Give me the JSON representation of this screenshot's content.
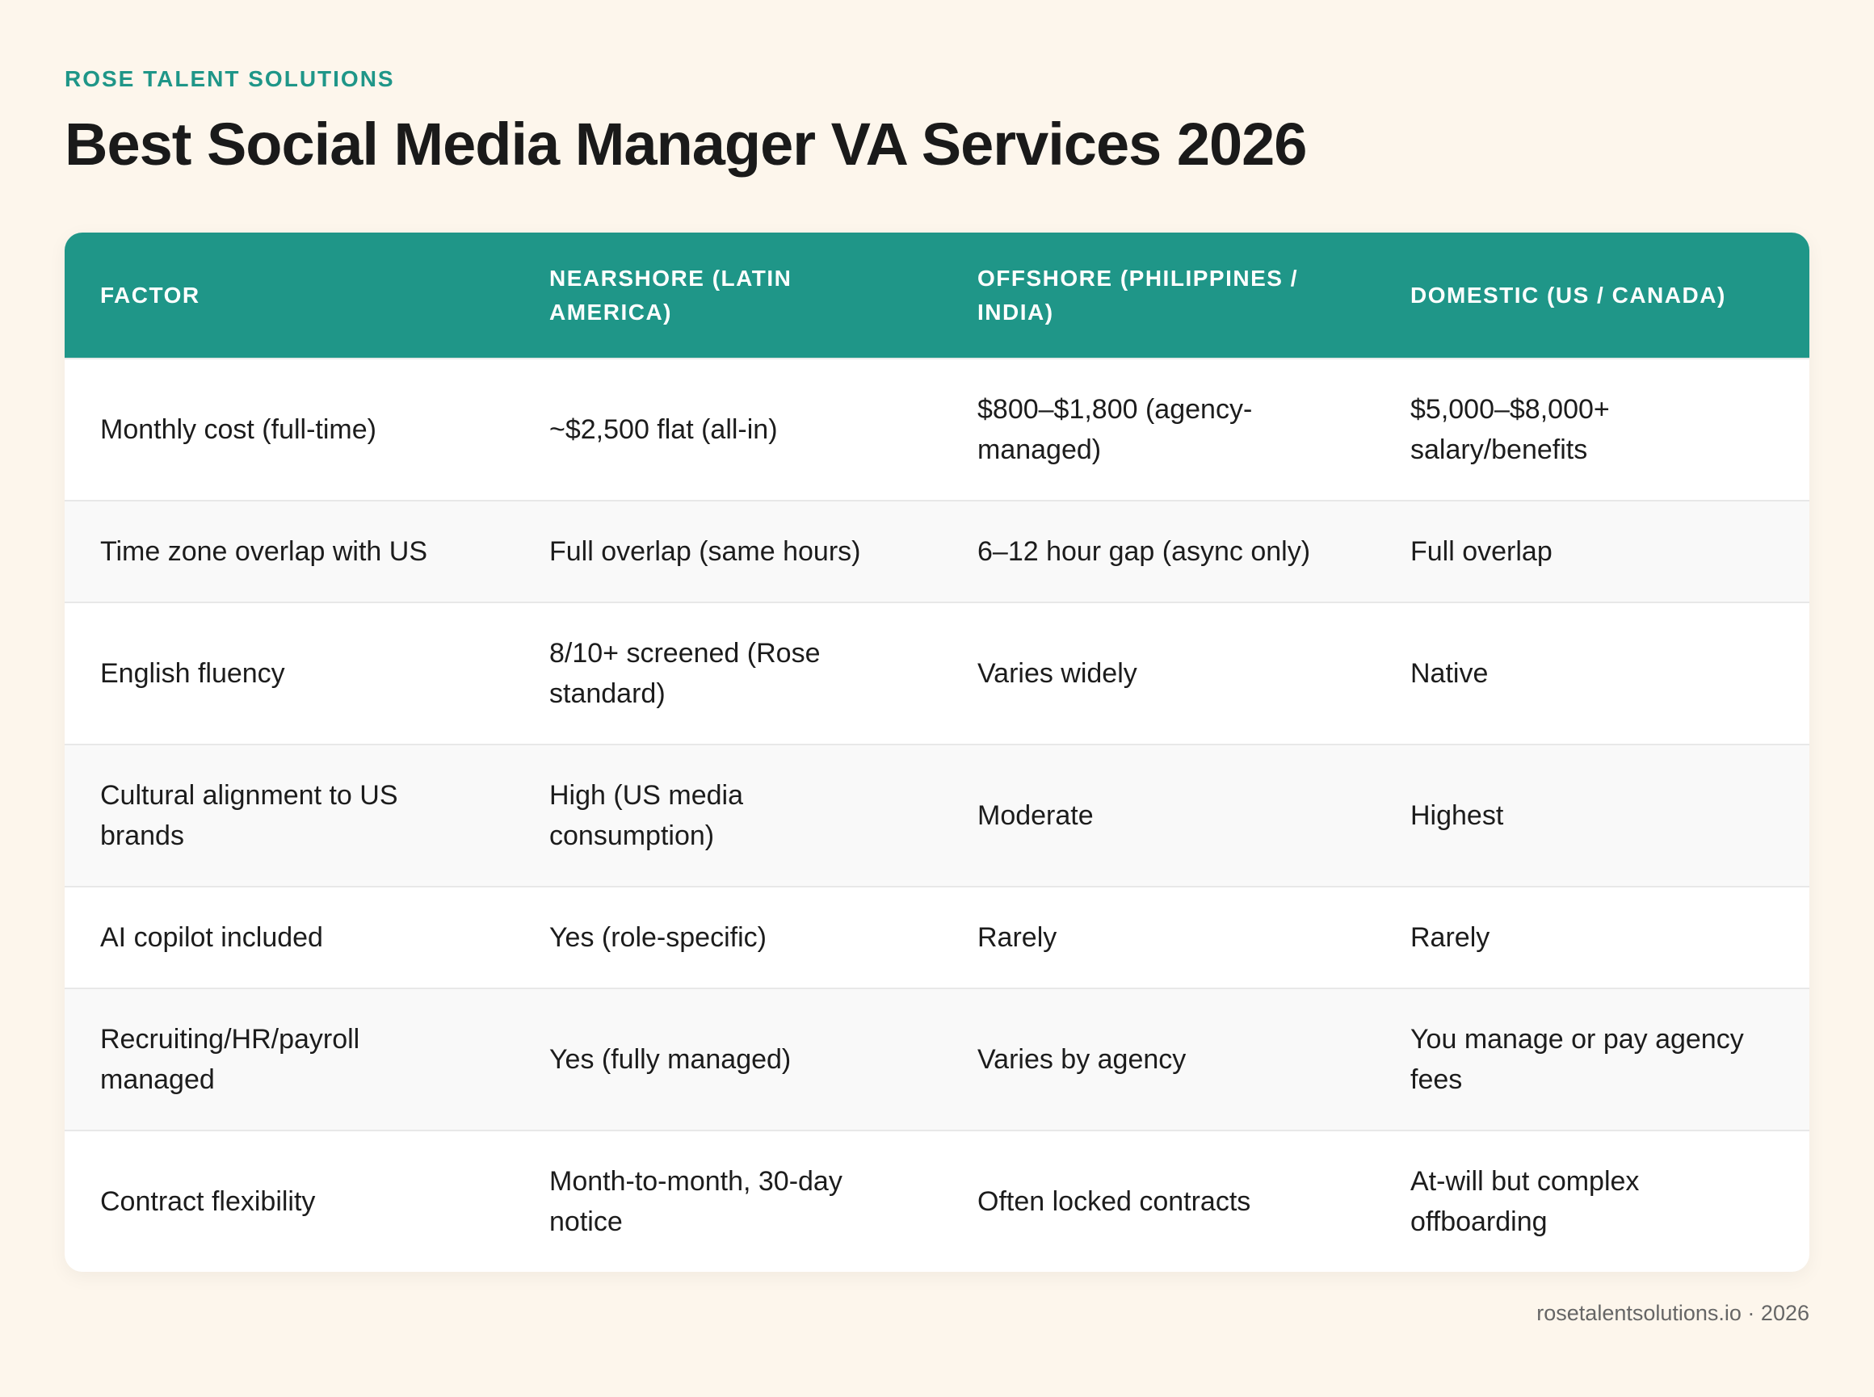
{
  "brand": "ROSE TALENT SOLUTIONS",
  "title": "Best Social Media Manager VA Services 2026",
  "table": {
    "headers": [
      "FACTOR",
      "NEARSHORE (LATIN AMERICA)",
      "OFFSHORE (PHILIPPINES / INDIA)",
      "DOMESTIC (US / CANADA)"
    ],
    "rows": [
      [
        "Monthly cost (full-time)",
        "~$2,500 flat (all-in)",
        "$800–$1,800 (agency-managed)",
        "$5,000–$8,000+ salary/benefits"
      ],
      [
        "Time zone overlap with US",
        "Full overlap (same hours)",
        "6–12 hour gap (async only)",
        "Full overlap"
      ],
      [
        "English fluency",
        "8/10+ screened (Rose standard)",
        "Varies widely",
        "Native"
      ],
      [
        "Cultural alignment to US brands",
        "High (US media consumption)",
        "Moderate",
        "Highest"
      ],
      [
        "AI copilot included",
        "Yes (role-specific)",
        "Rarely",
        "Rarely"
      ],
      [
        "Recruiting/HR/payroll managed",
        "Yes (fully managed)",
        "Varies by agency",
        "You manage or pay agency fees"
      ],
      [
        "Contract flexibility",
        "Month-to-month, 30-day notice",
        "Often locked contracts",
        "At-will but complex offboarding"
      ]
    ]
  },
  "footer": "rosetalentsolutions.io · 2026"
}
